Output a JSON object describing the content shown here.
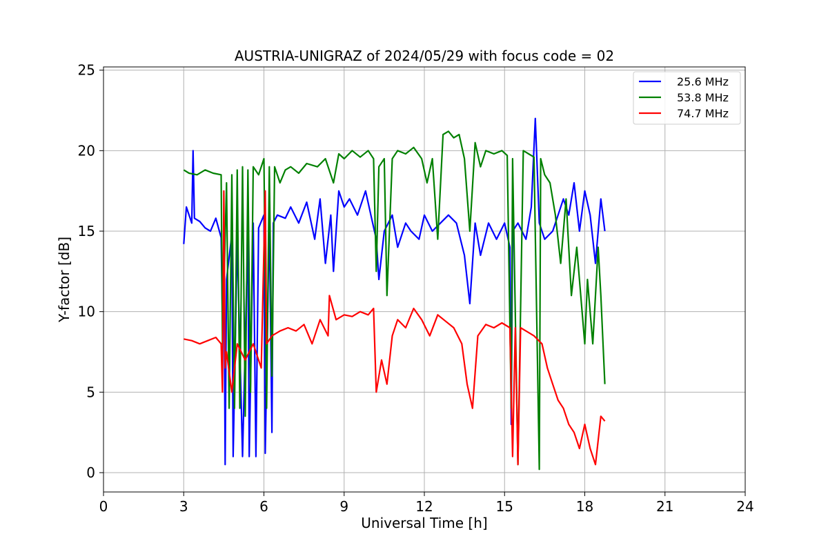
{
  "chart_data": {
    "type": "line",
    "title": "AUSTRIA-UNIGRAZ of 2024/05/29 with focus code = 02",
    "xlabel": "Universal Time [h]",
    "ylabel": "Y-factor [dB]",
    "xlim": [
      0,
      24
    ],
    "ylim": [
      -1.2,
      25.2
    ],
    "xticks": [
      0,
      3,
      6,
      9,
      12,
      15,
      18,
      21,
      24
    ],
    "yticks": [
      0,
      5,
      10,
      15,
      20,
      25
    ],
    "grid": true,
    "legend_position": "top-right",
    "series": [
      {
        "name": "25.6 MHz",
        "color": "#0000ff",
        "x": [
          3.0,
          3.1,
          3.3,
          3.35,
          3.4,
          3.6,
          3.8,
          4.0,
          4.2,
          4.4,
          4.45,
          4.5,
          4.55,
          4.6,
          4.8,
          4.85,
          5.0,
          5.2,
          5.4,
          5.45,
          5.6,
          5.7,
          5.8,
          6.0,
          6.05,
          6.2,
          6.3,
          6.35,
          6.5,
          6.8,
          7.0,
          7.3,
          7.6,
          7.9,
          8.1,
          8.3,
          8.5,
          8.6,
          8.8,
          9.0,
          9.2,
          9.5,
          9.8,
          10.0,
          10.2,
          10.3,
          10.5,
          10.8,
          11.0,
          11.3,
          11.5,
          11.8,
          12.0,
          12.3,
          12.6,
          12.9,
          13.2,
          13.5,
          13.7,
          13.9,
          14.1,
          14.4,
          14.7,
          15.0,
          15.2,
          15.25,
          15.3,
          15.5,
          15.8,
          16.0,
          16.15,
          16.3,
          16.5,
          16.8,
          17.0,
          17.2,
          17.4,
          17.6,
          17.8,
          18.0,
          18.2,
          18.4,
          18.6,
          18.75
        ],
        "y": [
          14.2,
          16.5,
          15.5,
          20.0,
          15.8,
          15.6,
          15.2,
          15.0,
          15.8,
          14.6,
          9.5,
          14.8,
          0.5,
          12.0,
          14.8,
          1.0,
          14.5,
          1.0,
          15.0,
          1.0,
          15.5,
          1.0,
          15.2,
          16.0,
          1.2,
          15.8,
          2.5,
          15.5,
          16.0,
          15.8,
          16.5,
          15.5,
          16.8,
          14.5,
          17.0,
          13.0,
          16.0,
          12.5,
          17.5,
          16.5,
          17.0,
          16.0,
          17.5,
          16.0,
          14.5,
          12.0,
          15.0,
          16.0,
          14.0,
          15.5,
          15.0,
          14.5,
          16.0,
          15.0,
          15.5,
          16.0,
          15.5,
          13.5,
          10.5,
          15.5,
          13.5,
          15.5,
          14.5,
          15.5,
          14.0,
          3.0,
          15.0,
          15.5,
          14.5,
          16.5,
          22.0,
          15.5,
          14.5,
          15.0,
          16.0,
          17.0,
          16.0,
          18.0,
          15.0,
          17.5,
          16.0,
          13.0,
          17.0,
          15.0
        ]
      },
      {
        "name": "53.8 MHz",
        "color": "#008000",
        "x": [
          3.0,
          3.2,
          3.5,
          3.8,
          4.1,
          4.4,
          4.45,
          4.6,
          4.7,
          4.8,
          4.9,
          5.0,
          5.1,
          5.2,
          5.3,
          5.4,
          5.5,
          5.6,
          5.8,
          6.0,
          6.1,
          6.2,
          6.3,
          6.4,
          6.6,
          6.8,
          7.0,
          7.3,
          7.6,
          8.0,
          8.3,
          8.6,
          8.8,
          9.0,
          9.3,
          9.6,
          9.9,
          10.1,
          10.2,
          10.3,
          10.5,
          10.6,
          10.8,
          11.0,
          11.3,
          11.6,
          11.9,
          12.1,
          12.3,
          12.5,
          12.7,
          12.9,
          13.1,
          13.3,
          13.5,
          13.7,
          13.9,
          14.1,
          14.3,
          14.6,
          14.9,
          15.1,
          15.25,
          15.3,
          15.5,
          15.7,
          15.9,
          16.1,
          16.3,
          16.35,
          16.5,
          16.7,
          16.9,
          17.1,
          17.3,
          17.5,
          17.7,
          17.9,
          18.0,
          18.1,
          18.3,
          18.5,
          18.6,
          18.75
        ],
        "y": [
          18.8,
          18.6,
          18.5,
          18.8,
          18.6,
          18.5,
          8.0,
          18.0,
          4.0,
          18.5,
          4.0,
          18.8,
          4.0,
          19.0,
          3.5,
          18.8,
          5.0,
          19.0,
          18.5,
          19.5,
          4.0,
          19.0,
          6.0,
          19.0,
          18.0,
          18.8,
          19.0,
          18.6,
          19.2,
          19.0,
          19.5,
          18.0,
          19.8,
          19.5,
          20.0,
          19.6,
          20.0,
          19.5,
          12.5,
          19.0,
          19.5,
          11.0,
          19.5,
          20.0,
          19.8,
          20.2,
          19.5,
          18.0,
          19.5,
          14.5,
          21.0,
          21.2,
          20.8,
          21.0,
          19.5,
          15.0,
          20.5,
          19.0,
          20.0,
          19.8,
          20.0,
          19.7,
          4.0,
          19.5,
          0.5,
          20.0,
          19.8,
          19.6,
          0.2,
          19.5,
          18.5,
          18.0,
          16.0,
          13.0,
          17.0,
          11.0,
          14.0,
          10.0,
          8.0,
          12.0,
          8.0,
          14.0,
          11.0,
          5.5
        ]
      },
      {
        "name": "74.7 MHz",
        "color": "#ff0000",
        "x": [
          3.0,
          3.3,
          3.6,
          3.9,
          4.2,
          4.4,
          4.45,
          4.5,
          4.55,
          4.6,
          4.8,
          5.0,
          5.3,
          5.6,
          5.9,
          6.05,
          6.1,
          6.3,
          6.6,
          6.9,
          7.2,
          7.5,
          7.8,
          8.1,
          8.4,
          8.45,
          8.7,
          9.0,
          9.3,
          9.6,
          9.9,
          10.1,
          10.2,
          10.4,
          10.6,
          10.8,
          11.0,
          11.3,
          11.6,
          11.9,
          12.2,
          12.5,
          12.8,
          13.1,
          13.4,
          13.6,
          13.8,
          14.0,
          14.3,
          14.6,
          14.9,
          15.2,
          15.3,
          15.4,
          15.5,
          15.6,
          15.8,
          16.1,
          16.4,
          16.6,
          16.8,
          17.0,
          17.2,
          17.4,
          17.6,
          17.8,
          18.0,
          18.2,
          18.4,
          18.6,
          18.75
        ],
        "y": [
          8.3,
          8.2,
          8.0,
          8.2,
          8.4,
          8.0,
          5.0,
          17.5,
          6.5,
          7.5,
          5.0,
          8.0,
          7.0,
          8.0,
          6.5,
          17.5,
          8.0,
          8.5,
          8.8,
          9.0,
          8.8,
          9.2,
          8.0,
          9.5,
          8.5,
          11.0,
          9.5,
          9.8,
          9.7,
          10.0,
          9.8,
          10.2,
          5.0,
          7.0,
          5.5,
          8.5,
          9.5,
          9.0,
          10.2,
          9.5,
          8.5,
          9.8,
          9.4,
          9.0,
          8.0,
          5.5,
          4.0,
          8.5,
          9.2,
          9.0,
          9.3,
          9.0,
          1.0,
          9.0,
          0.5,
          9.0,
          8.8,
          8.5,
          8.0,
          6.5,
          5.5,
          4.5,
          4.0,
          3.0,
          2.5,
          1.5,
          3.0,
          1.5,
          0.5,
          3.5,
          3.2
        ]
      }
    ]
  }
}
